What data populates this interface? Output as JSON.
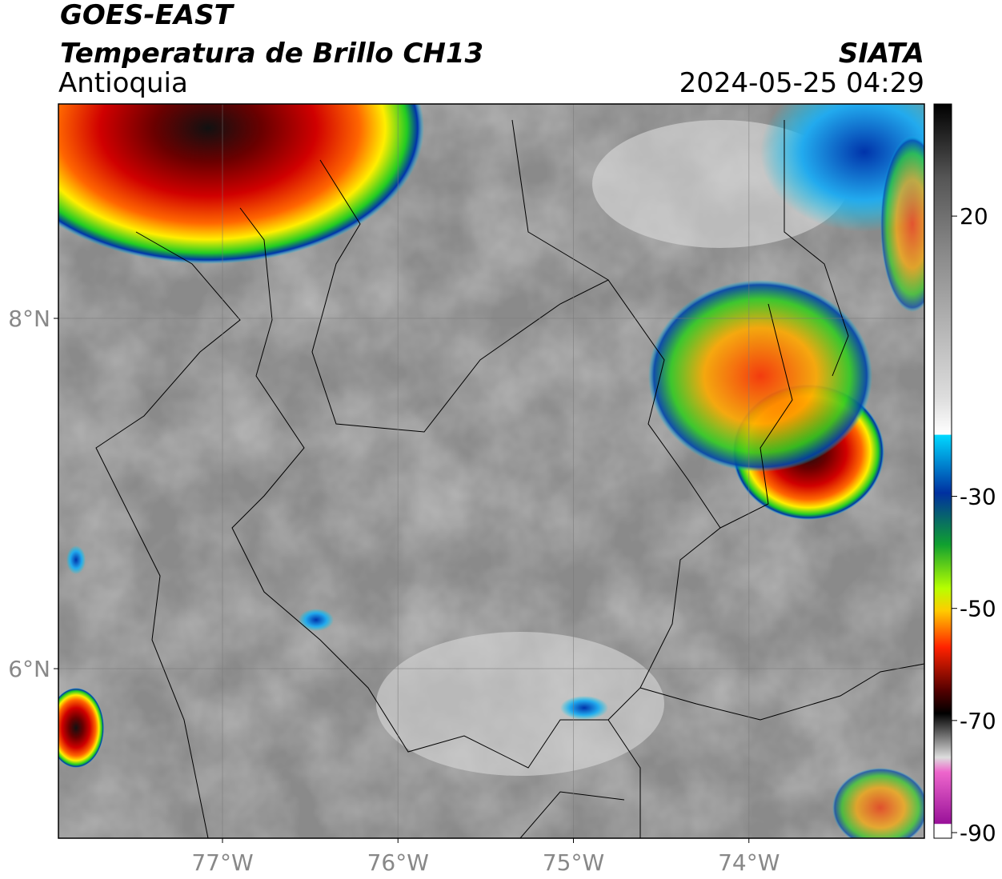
{
  "header": {
    "title": "GOES-EAST",
    "subtitle": "Temperatura de Brillo CH13",
    "region": "Antioquia",
    "source": "SIATA",
    "timestamp": "2024-05-25 04:29"
  },
  "map": {
    "xlim": [
      -77.935,
      -73.0
    ],
    "ylim": [
      5.032,
      9.224
    ],
    "xticks": [
      {
        "value": -77,
        "label": "77°W"
      },
      {
        "value": -76,
        "label": "76°W"
      },
      {
        "value": -75,
        "label": "75°W"
      },
      {
        "value": -74,
        "label": "74°W"
      }
    ],
    "yticks": [
      {
        "value": 8,
        "label": "8°N"
      },
      {
        "value": 6,
        "label": "6°N"
      }
    ]
  },
  "colorbar": {
    "lim": [
      -91,
      40
    ],
    "ticks": [
      20,
      -30,
      -50,
      -70,
      -90
    ]
  }
}
